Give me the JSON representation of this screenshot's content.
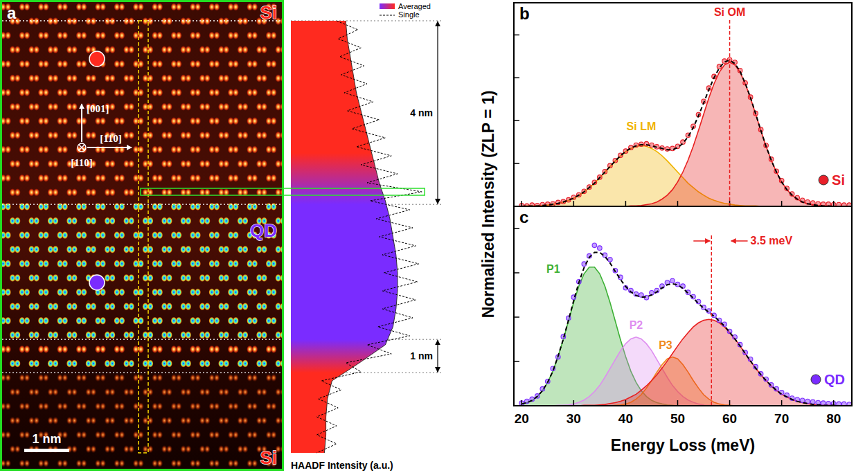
{
  "panel_a": {
    "label": "a",
    "regions": [
      {
        "label": "Si",
        "color": "#ff2a1f"
      },
      {
        "label": "QD",
        "color": "#7a2cff"
      },
      {
        "label": "Si",
        "color": "#ff2a1f"
      }
    ],
    "directions": [
      "[001]",
      "[11̅0]",
      "[110]"
    ],
    "scale_bar": {
      "label": "1 nm",
      "length": 1
    }
  },
  "spectra_axes": {
    "x_label": "Energy Loss (meV)",
    "y_label": "Normalized Intensity (ZLP = 1)"
  },
  "chart_data": [
    {
      "type": "area",
      "orientation": "horizontal",
      "x_label": "HAADF Intensity (a.u.)",
      "tick_labels": false,
      "legend": "upper right",
      "xlim": [
        0,
        9.6
      ],
      "ylim": [
        0,
        1
      ],
      "boundaries": [
        0,
        4.08,
        7.08,
        7.82
      ],
      "highlight": 3.8,
      "annotations": [
        {
          "text": "4 nm",
          "x": [
            0,
            4.08
          ]
        },
        {
          "text": "1 nm",
          "x": [
            7.08,
            7.82
          ]
        }
      ],
      "series": [
        {
          "name": "Averaged",
          "type": "area",
          "x": [
            0,
            0.4,
            0.8,
            1.2,
            1.6,
            2,
            2.4,
            2.8,
            3.2,
            3.6,
            4,
            4.4,
            4.8,
            5.2,
            5.6,
            6,
            6.4,
            6.8,
            7.2,
            7.6,
            8,
            8.4,
            8.8,
            9.2,
            9.6
          ],
          "values": [
            0.36,
            0.37,
            0.39,
            0.41,
            0.43,
            0.46,
            0.49,
            0.52,
            0.55,
            0.58,
            0.62,
            0.65,
            0.67,
            0.69,
            0.7,
            0.7,
            0.69,
            0.67,
            0.62,
            0.45,
            0.27,
            0.24,
            0.23,
            0.23,
            0.22
          ]
        },
        {
          "name": "Single",
          "type": "line",
          "line_style": "dashed",
          "color": "#000000",
          "x": [
            0,
            0.2,
            0.4,
            0.6,
            0.8,
            1,
            1.2,
            1.4,
            1.6,
            1.8,
            2,
            2.2,
            2.4,
            2.6,
            2.8,
            3,
            3.2,
            3.4,
            3.6,
            3.8,
            4,
            4.2,
            4.4,
            4.6,
            4.8,
            5,
            5.2,
            5.4,
            5.6,
            5.8,
            6,
            6.2,
            6.4,
            6.6,
            6.8,
            7,
            7.2,
            7.4,
            7.6,
            7.8,
            8,
            8.2,
            8.4,
            8.6,
            8.8,
            9,
            9.2,
            9.4,
            9.6
          ],
          "values": [
            0.3,
            0.44,
            0.31,
            0.46,
            0.32,
            0.48,
            0.33,
            0.5,
            0.35,
            0.54,
            0.37,
            0.58,
            0.4,
            0.62,
            0.43,
            0.66,
            0.46,
            0.7,
            0.5,
            0.86,
            0.52,
            0.78,
            0.56,
            0.8,
            0.58,
            0.82,
            0.6,
            0.84,
            0.61,
            0.83,
            0.6,
            0.82,
            0.6,
            0.8,
            0.57,
            0.78,
            0.5,
            0.66,
            0.36,
            0.46,
            0.2,
            0.33,
            0.18,
            0.31,
            0.17,
            0.3,
            0.17,
            0.3,
            0.17
          ]
        }
      ]
    },
    {
      "type": "scatter",
      "label": "b",
      "tick_labels": false,
      "legend": "lower right",
      "xlim": [
        18.5,
        83.5
      ],
      "xticks": [
        20,
        30,
        40,
        50,
        60,
        70,
        80
      ],
      "ylim": [
        0,
        4.75
      ],
      "yticks": [
        0,
        1,
        2,
        3,
        4
      ],
      "x": [
        20,
        21,
        22,
        23,
        24,
        25,
        26,
        27,
        28,
        29,
        30,
        31,
        32,
        33,
        34,
        35,
        36,
        37,
        38,
        39,
        40,
        41,
        42,
        43,
        44,
        45,
        46,
        47,
        48,
        49,
        50,
        51,
        52,
        53,
        54,
        55,
        56,
        57,
        58,
        59,
        60,
        61,
        62,
        63,
        64,
        65,
        66,
        67,
        68,
        69,
        70,
        71,
        72,
        73,
        74,
        75,
        76,
        77,
        78,
        79,
        80,
        81,
        82,
        83
      ],
      "series": [
        {
          "name": "Si",
          "type": "scatter",
          "marker": "circle",
          "color": "#e8202a",
          "values": [
            0.02,
            0.01,
            0.03,
            0.02,
            0.04,
            0.05,
            0.06,
            0.09,
            0.11,
            0.15,
            0.21,
            0.27,
            0.35,
            0.45,
            0.56,
            0.68,
            0.81,
            0.95,
            1.07,
            1.19,
            1.29,
            1.37,
            1.43,
            1.45,
            1.46,
            1.43,
            1.39,
            1.36,
            1.34,
            1.35,
            1.4,
            1.5,
            1.66,
            1.87,
            2.14,
            2.45,
            2.76,
            3.03,
            3.26,
            3.39,
            3.42,
            3.36,
            3.17,
            2.88,
            2.55,
            2.17,
            1.79,
            1.42,
            1.1,
            0.82,
            0.6,
            0.42,
            0.29,
            0.2,
            0.14,
            0.1,
            0.08,
            0.06,
            0.05,
            0.05,
            0.04,
            0.04,
            0.03,
            0.03
          ]
        },
        {
          "type": "line",
          "line_style": "dashed",
          "color": "#000000",
          "values": [
            0,
            0.01,
            0.01,
            0.01,
            0.02,
            0.03,
            0.05,
            0.07,
            0.1,
            0.14,
            0.19,
            0.26,
            0.34,
            0.44,
            0.54,
            0.67,
            0.8,
            0.93,
            1.06,
            1.18,
            1.28,
            1.36,
            1.41,
            1.44,
            1.44,
            1.41,
            1.38,
            1.35,
            1.32,
            1.32,
            1.37,
            1.47,
            1.62,
            1.84,
            2.11,
            2.41,
            2.72,
            3.0,
            3.23,
            3.37,
            3.41,
            3.33,
            3.15,
            2.87,
            2.54,
            2.16,
            1.77,
            1.4,
            1.08,
            0.8,
            0.57,
            0.39,
            0.26,
            0.17,
            0.1,
            0.06,
            0.04,
            0.02,
            0.01,
            0.01,
            0,
            0,
            0,
            0
          ]
        },
        {
          "name": "Si LM",
          "type": "area",
          "color": "#f0b400",
          "values": [
            0,
            0.01,
            0.01,
            0.01,
            0.02,
            0.03,
            0.05,
            0.07,
            0.1,
            0.14,
            0.19,
            0.26,
            0.34,
            0.44,
            0.54,
            0.67,
            0.8,
            0.93,
            1.06,
            1.18,
            1.28,
            1.35,
            1.4,
            1.42,
            1.4,
            1.35,
            1.28,
            1.18,
            1.06,
            0.93,
            0.8,
            0.67,
            0.54,
            0.44,
            0.34,
            0.26,
            0.19,
            0.14,
            0.1,
            0.07,
            0.05,
            0.03,
            0.02,
            0.01,
            0.01,
            0.01,
            0,
            0,
            0,
            0,
            0,
            0,
            0,
            0,
            0,
            0,
            0,
            0,
            0,
            0,
            0,
            0,
            0,
            0
          ]
        },
        {
          "name": "Si OM",
          "type": "area",
          "color": "#e82020",
          "values": [
            0,
            0,
            0,
            0,
            0,
            0,
            0,
            0,
            0,
            0,
            0,
            0,
            0,
            0,
            0,
            0,
            0,
            0,
            0,
            0,
            0,
            0.01,
            0.01,
            0.02,
            0.04,
            0.06,
            0.1,
            0.17,
            0.26,
            0.39,
            0.57,
            0.8,
            1.08,
            1.4,
            1.77,
            2.15,
            2.53,
            2.86,
            3.13,
            3.3,
            3.36,
            3.3,
            3.13,
            2.86,
            2.53,
            2.15,
            1.77,
            1.4,
            1.08,
            0.8,
            0.57,
            0.39,
            0.26,
            0.17,
            0.1,
            0.06,
            0.04,
            0.02,
            0.01,
            0.01,
            0,
            0,
            0,
            0
          ]
        }
      ]
    },
    {
      "type": "scatter",
      "label": "c",
      "tick_labels": "x",
      "legend": "lower right",
      "xlim": [
        18.5,
        83.5
      ],
      "xticks": [
        20,
        30,
        40,
        50,
        60,
        70,
        80
      ],
      "ylim": [
        0,
        4.5
      ],
      "yticks": [
        0,
        1,
        2,
        3,
        4
      ],
      "annotations": [
        {
          "text": "3.5 meV",
          "x": [
            56.5,
            60
          ],
          "color": "#e82020"
        }
      ],
      "x": [
        20,
        21,
        22,
        23,
        24,
        25,
        26,
        27,
        28,
        29,
        30,
        31,
        32,
        33,
        34,
        35,
        36,
        37,
        38,
        39,
        40,
        41,
        42,
        43,
        44,
        45,
        46,
        47,
        48,
        49,
        50,
        51,
        52,
        53,
        54,
        55,
        56,
        57,
        58,
        59,
        60,
        61,
        62,
        63,
        64,
        65,
        66,
        67,
        68,
        69,
        70,
        71,
        72,
        73,
        74,
        75,
        76,
        77,
        78,
        79,
        80,
        81,
        82,
        83
      ],
      "series": [
        {
          "name": "QD",
          "type": "scatter",
          "marker": "circle",
          "color": "#7a2cff",
          "values": [
            0.06,
            0.1,
            0.15,
            0.22,
            0.38,
            0.55,
            0.84,
            1.1,
            1.56,
            1.98,
            2.45,
            2.8,
            3.2,
            3.38,
            3.62,
            3.56,
            3.4,
            3.3,
            3.05,
            2.9,
            2.66,
            2.6,
            2.52,
            2.5,
            2.44,
            2.55,
            2.6,
            2.7,
            2.78,
            2.82,
            2.74,
            2.7,
            2.56,
            2.46,
            2.35,
            2.22,
            2.14,
            2.04,
            1.93,
            1.84,
            1.68,
            1.55,
            1.38,
            1.2,
            1.05,
            0.88,
            0.72,
            0.6,
            0.47,
            0.38,
            0.3,
            0.24,
            0.17,
            0.14,
            0.12,
            0.1,
            0.09,
            0.07,
            0.06,
            0.05,
            0.05,
            0.04,
            0.04,
            0.03
          ]
        },
        {
          "type": "line",
          "line_style": "dashed",
          "color": "#000000",
          "values": [
            0.04,
            0.07,
            0.12,
            0.21,
            0.34,
            0.53,
            0.78,
            1.12,
            1.5,
            1.93,
            2.37,
            2.78,
            3.12,
            3.35,
            3.46,
            3.46,
            3.37,
            3.22,
            3.03,
            2.85,
            2.69,
            2.57,
            2.49,
            2.45,
            2.46,
            2.5,
            2.57,
            2.66,
            2.73,
            2.75,
            2.73,
            2.65,
            2.54,
            2.43,
            2.31,
            2.2,
            2.11,
            2.02,
            1.91,
            1.8,
            1.66,
            1.51,
            1.35,
            1.18,
            1.01,
            0.85,
            0.7,
            0.57,
            0.45,
            0.35,
            0.26,
            0.2,
            0.14,
            0.1,
            0.07,
            0.05,
            0.03,
            0.02,
            0.01,
            0.01,
            0.01,
            0,
            0,
            0
          ]
        },
        {
          "name": "P1",
          "type": "area",
          "color": "#3cb034",
          "values": [
            0.04,
            0.07,
            0.12,
            0.21,
            0.34,
            0.53,
            0.78,
            1.11,
            1.49,
            1.91,
            2.33,
            2.7,
            2.98,
            3.13,
            3.13,
            2.98,
            2.7,
            2.33,
            1.91,
            1.49,
            1.11,
            0.78,
            0.53,
            0.34,
            0.21,
            0.12,
            0.07,
            0.04,
            0.02,
            0.01,
            0,
            0,
            0,
            0,
            0,
            0,
            0,
            0,
            0,
            0,
            0,
            0,
            0,
            0,
            0,
            0,
            0,
            0,
            0,
            0,
            0,
            0,
            0,
            0,
            0,
            0,
            0,
            0,
            0,
            0,
            0,
            0,
            0,
            0
          ]
        },
        {
          "name": "P2",
          "type": "area",
          "color": "#de8ef0",
          "values": [
            0,
            0,
            0,
            0,
            0,
            0,
            0,
            0.01,
            0.01,
            0.02,
            0.04,
            0.08,
            0.13,
            0.21,
            0.32,
            0.46,
            0.64,
            0.84,
            1.04,
            1.24,
            1.4,
            1.51,
            1.55,
            1.51,
            1.4,
            1.24,
            1.04,
            0.84,
            0.64,
            0.46,
            0.32,
            0.21,
            0.13,
            0.08,
            0.04,
            0.02,
            0.01,
            0.01,
            0,
            0,
            0,
            0,
            0,
            0,
            0,
            0,
            0,
            0,
            0,
            0,
            0,
            0,
            0,
            0,
            0,
            0,
            0,
            0,
            0,
            0,
            0,
            0,
            0,
            0
          ]
        },
        {
          "name": "P3",
          "type": "area",
          "color": "#f08a1c",
          "values": [
            0,
            0,
            0,
            0,
            0,
            0,
            0,
            0,
            0,
            0,
            0,
            0,
            0,
            0,
            0,
            0,
            0,
            0,
            0.01,
            0.02,
            0.04,
            0.08,
            0.15,
            0.25,
            0.4,
            0.57,
            0.76,
            0.93,
            1.06,
            1.1,
            1.06,
            0.93,
            0.76,
            0.57,
            0.4,
            0.25,
            0.15,
            0.08,
            0.04,
            0.02,
            0.01,
            0,
            0,
            0,
            0,
            0,
            0,
            0,
            0,
            0,
            0,
            0,
            0,
            0,
            0,
            0,
            0,
            0,
            0,
            0,
            0,
            0,
            0,
            0
          ]
        },
        {
          "type": "area",
          "color": "#e82020",
          "values": [
            0,
            0,
            0,
            0,
            0,
            0,
            0,
            0,
            0,
            0,
            0,
            0,
            0.01,
            0.01,
            0.01,
            0.02,
            0.03,
            0.05,
            0.07,
            0.1,
            0.14,
            0.2,
            0.26,
            0.35,
            0.45,
            0.57,
            0.7,
            0.85,
            1.01,
            1.18,
            1.35,
            1.51,
            1.65,
            1.78,
            1.87,
            1.93,
            1.95,
            1.93,
            1.87,
            1.78,
            1.65,
            1.51,
            1.35,
            1.18,
            1.01,
            0.85,
            0.7,
            0.57,
            0.45,
            0.35,
            0.26,
            0.2,
            0.14,
            0.1,
            0.07,
            0.05,
            0.03,
            0.02,
            0.01,
            0.01,
            0.01,
            0,
            0,
            0
          ]
        }
      ]
    }
  ]
}
